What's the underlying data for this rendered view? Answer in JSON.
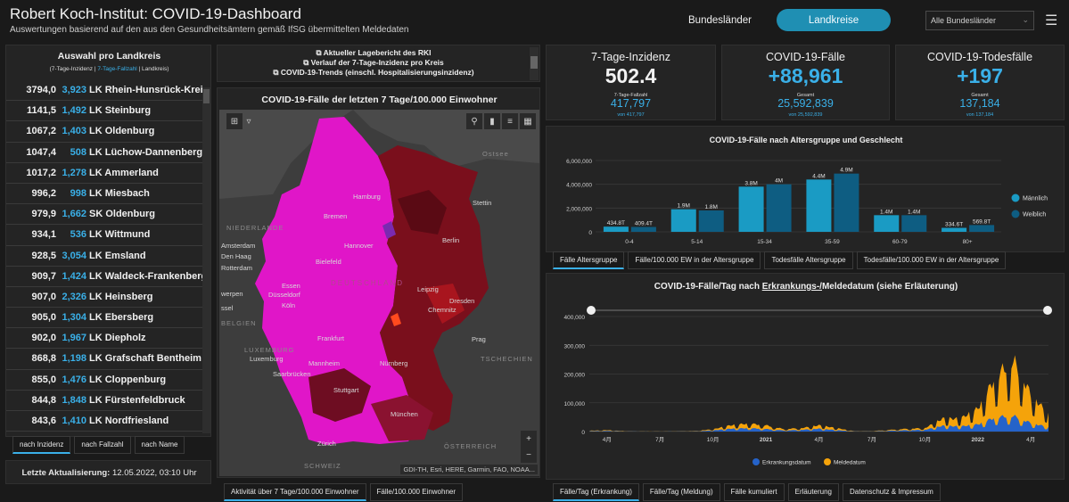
{
  "header": {
    "title": "Robert Koch-Institut: COVID-19-Dashboard",
    "subtitle": "Auswertungen basierend auf den aus den Gesundheitsämtern gemäß IfSG übermittelten Meldedaten",
    "nav_bundeslaender": "Bundesländer",
    "nav_landkreise": "Landkreise",
    "select_value": "Alle Bundesländer",
    "accent": "#1f8fb3"
  },
  "list": {
    "title": "Auswahl pro Landkreis",
    "sub_a": "(7-Tage-Inzidenz | ",
    "sub_b": "7-Tage-Fallzahl",
    "sub_c": " | Landkreis)",
    "rows": [
      {
        "inz": "3794,0",
        "fz": "3,923",
        "name": "LK Rhein-Hunsrück-Kreis"
      },
      {
        "inz": "1141,5",
        "fz": "1,492",
        "name": "LK Steinburg"
      },
      {
        "inz": "1067,2",
        "fz": "1,403",
        "name": "LK Oldenburg"
      },
      {
        "inz": "1047,4",
        "fz": "508",
        "name": "LK Lüchow-Dannenberg"
      },
      {
        "inz": "1017,2",
        "fz": "1,278",
        "name": "LK Ammerland"
      },
      {
        "inz": "996,2",
        "fz": "998",
        "name": "LK Miesbach"
      },
      {
        "inz": "979,9",
        "fz": "1,662",
        "name": "SK Oldenburg"
      },
      {
        "inz": "934,1",
        "fz": "536",
        "name": "LK Wittmund"
      },
      {
        "inz": "928,5",
        "fz": "3,054",
        "name": "LK Emsland"
      },
      {
        "inz": "909,7",
        "fz": "1,424",
        "name": "LK Waldeck-Frankenberg"
      },
      {
        "inz": "907,0",
        "fz": "2,326",
        "name": "LK Heinsberg"
      },
      {
        "inz": "905,0",
        "fz": "1,304",
        "name": "LK Ebersberg"
      },
      {
        "inz": "902,0",
        "fz": "1,967",
        "name": "LK Diepholz"
      },
      {
        "inz": "868,8",
        "fz": "1,198",
        "name": "LK Grafschaft Bentheim"
      },
      {
        "inz": "855,0",
        "fz": "1,476",
        "name": "LK Cloppenburg"
      },
      {
        "inz": "844,8",
        "fz": "1,848",
        "name": "LK Fürstenfeldbruck"
      },
      {
        "inz": "843,6",
        "fz": "1,410",
        "name": "LK Nordfriesland"
      }
    ],
    "tabs": [
      "nach Inzidenz",
      "nach Fallzahl",
      "nach Name"
    ],
    "update_label": "Letzte Aktualisierung:",
    "update_value": "12.05.2022, 03:10 Uhr"
  },
  "links": {
    "l1": "Aktueller Lagebericht des RKI",
    "l2": "Verlauf der 7-Tage-Inzidenz pro Kreis",
    "l3": "COVID-19-Trends (einschl. Hospitalisierungsinzidenz)"
  },
  "map": {
    "title": "COVID-19-Fälle der letzten 7 Tage/100.000 Einwohner",
    "labels": {
      "ostsee": "Ostsee",
      "hamburg": "Hamburg",
      "stettin": "Stettin",
      "bremen": "Bremen",
      "niederlande": "NIEDERLANDE",
      "amsterdam": "Amsterdam",
      "hannover": "Hannover",
      "berlin": "Berlin",
      "denhaag": "Den Haag",
      "bielefeld": "Bielefeld",
      "rotterdam": "Rotterdam",
      "deutschland": "DEUTSCHLAND",
      "essen": "Essen",
      "duesseldorf": "Düsseldorf",
      "leipzig": "Leipzig",
      "dresden": "Dresden",
      "koeln": "Köln",
      "chemnitz": "Chemnitz",
      "werpen": "werpen",
      "ssel": "ssel",
      "belgien": "BELGIEN",
      "frankfurt": "Frankfurt",
      "prag": "Prag",
      "luxemburg_c": "LUXEMBURG",
      "luxemburg": "Luxemburg",
      "mannheim": "Mannheim",
      "tschechien": "TSCHECHIEN",
      "nuernberg": "Nürnberg",
      "saarbruecken": "Saarbrücken",
      "stuttgart": "Stuttgart",
      "muenchen": "München",
      "oesterreich": "ÖSTERREICH",
      "zuerich": "Zürich",
      "schweiz": "SCHWEIZ"
    },
    "attribution": "GDI-TH, Esri, HERE, Garmin, FAO, NOAA...",
    "tabs": [
      "Aktivität über 7 Tage/100.000 Einwohner",
      "Fälle/100.000 Einwohner"
    ]
  },
  "kpis": {
    "k1": {
      "title": "7-Tage-Inzidenz",
      "main": "502.4",
      "sub": "7-Tage-Fallzahl",
      "subval": "417,797",
      "foot": "von 417,797"
    },
    "k2": {
      "title": "COVID-19-Fälle",
      "main": "+88,961",
      "sub": "Gesamt",
      "subval": "25,592,839",
      "foot": "von 25,592,839"
    },
    "k3": {
      "title": "COVID-19-Todesfälle",
      "main": "+197",
      "sub": "Gesamt",
      "subval": "137,184",
      "foot": "von 137,184"
    }
  },
  "chart_data": [
    {
      "type": "bar",
      "title": "COVID-19-Fälle nach Altersgruppe und Geschlecht",
      "categories": [
        "0-4",
        "5-14",
        "15-34",
        "35-59",
        "60-79",
        "80+"
      ],
      "series": [
        {
          "name": "Männlich",
          "values": [
            434800,
            1900000,
            3800000,
            4400000,
            1400000,
            334600
          ],
          "labels": [
            "434.8T",
            "1.9M",
            "3.8M",
            "4.4M",
            "1.4M",
            "334.6T"
          ],
          "color": "#1a9bc4"
        },
        {
          "name": "Weiblich",
          "values": [
            409400,
            1800000,
            4000000,
            4900000,
            1400000,
            569800
          ],
          "labels": [
            "409.4T",
            "1.8M",
            "4M",
            "4.9M",
            "1.4M",
            "569.8T"
          ],
          "color": "#0e5d82"
        }
      ],
      "yticks": [
        "0",
        "2,000,000",
        "4,000,000",
        "6,000,000"
      ],
      "ylim": [
        0,
        6000000
      ],
      "legend": "right",
      "tabs": [
        "Fälle Altersgruppe",
        "Fälle/100.000 EW in der Altersgruppe",
        "Todesfälle Altersgruppe",
        "Todesfälle/100.000 EW in der Altersgruppe"
      ]
    },
    {
      "type": "area",
      "title_a": "COVID-19-Fälle/Tag nach ",
      "title_b": "Erkrankungs-/",
      "title_c": "Meldedatum (siehe Erläuterung)",
      "x": [
        "2020-03",
        "2020-04",
        "2020-05",
        "2020-06",
        "2020-07",
        "2020-08",
        "2020-09",
        "2020-10",
        "2020-11",
        "2020-12",
        "2021-01",
        "2021-02",
        "2021-03",
        "2021-04",
        "2021-05",
        "2021-06",
        "2021-07",
        "2021-08",
        "2021-09",
        "2021-10",
        "2021-11",
        "2021-12",
        "2022-01",
        "2022-02",
        "2022-03",
        "2022-04",
        "2022-05"
      ],
      "series": [
        {
          "name": "Meldedatum",
          "values": [
            3000,
            5000,
            1500,
            500,
            500,
            1200,
            2000,
            8000,
            22000,
            28000,
            22000,
            9000,
            12000,
            22000,
            12000,
            1500,
            1500,
            6000,
            10000,
            12000,
            45000,
            45000,
            80000,
            190000,
            250000,
            130000,
            60000
          ],
          "color": "#f5a30a"
        },
        {
          "name": "Erkrankungsdatum",
          "values": [
            1500,
            2500,
            800,
            300,
            300,
            600,
            1000,
            4000,
            10000,
            12000,
            9000,
            4000,
            6000,
            10000,
            5000,
            700,
            700,
            3000,
            5000,
            6000,
            20000,
            18000,
            25000,
            50000,
            55000,
            30000,
            15000
          ],
          "color": "#2563c9"
        }
      ],
      "yticks": [
        "0",
        "100,000",
        "200,000",
        "300,000",
        "400,000"
      ],
      "xticks": [
        "4M",
        "7M",
        "10M",
        "2021",
        "4M",
        "7M",
        "10M",
        "2022",
        "4M"
      ],
      "ylim": [
        0,
        400000
      ],
      "legend": "bottom",
      "tabs": [
        "Fälle/Tag (Erkrankung)",
        "Fälle/Tag (Meldung)",
        "Fälle kumuliert",
        "Erläuterung",
        "Datenschutz & Impressum"
      ]
    }
  ]
}
